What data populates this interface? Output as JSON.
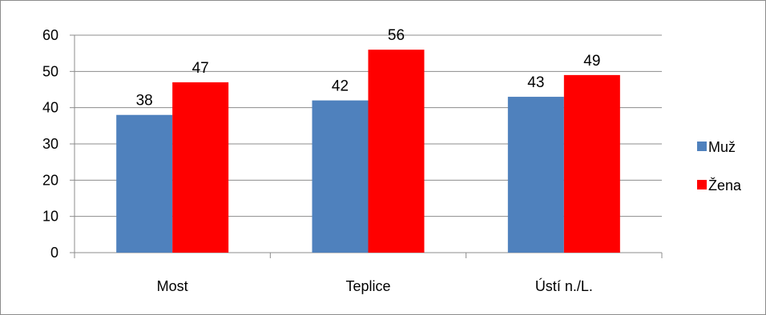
{
  "chart_data": {
    "type": "bar",
    "categories": [
      "Most",
      "Teplice",
      "Ústí n./L."
    ],
    "series": [
      {
        "name": "Muž",
        "values": [
          38,
          42,
          43
        ],
        "color": "#4f81bd"
      },
      {
        "name": "Žena",
        "values": [
          47,
          56,
          49
        ],
        "color": "#ff0000"
      }
    ],
    "ylim": [
      0,
      60
    ],
    "yticks": [
      0,
      10,
      20,
      30,
      40,
      50,
      60
    ],
    "grid": true,
    "legend_position": "right",
    "data_labels": true
  }
}
